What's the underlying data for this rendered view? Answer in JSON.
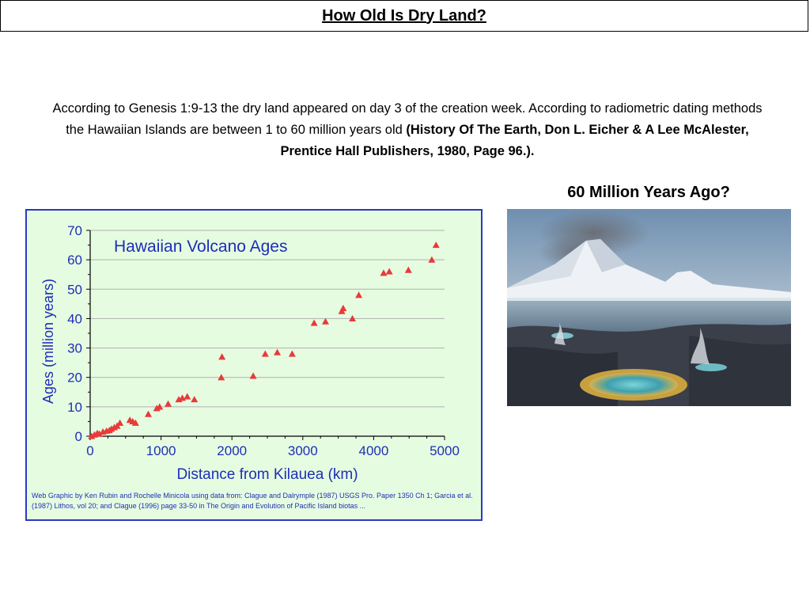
{
  "header": {
    "title": "How Old Is Dry Land?"
  },
  "intro": {
    "text": "According to Genesis 1:9-13 the dry land appeared on day 3 of the creation week. According to radiometric dating methods the Hawaiian Islands are between 1 to 60 million years old ",
    "citation": "(History Of The Earth, Don L. Eicher & A Lee McAlester, Prentice Hall Publishers, 1980, Page 96.)."
  },
  "caption": "60 Million Years Ago?",
  "credit": "Web Graphic by Ken Rubin and Rochelle Minicola using data from: Clague and Dalrymple (1987) USGS Pro. Paper 1350 Ch 1; Garcia et al. (1987) Lithos, vol 20; and Clague (1996) page 33-50 in The Origin and Evolution of Pacific Island biotas ...",
  "chart_data": {
    "type": "scatter",
    "title": "Hawaiian  Volcano Ages",
    "xlabel": "Distance from Kilauea (km)",
    "ylabel": "Ages (million years)",
    "xlim": [
      0,
      5000
    ],
    "ylim": [
      0,
      70
    ],
    "xticks": [
      "0",
      "1000",
      "2000",
      "3000",
      "4000",
      "5000"
    ],
    "yticks": [
      "0",
      "10",
      "20",
      "30",
      "40",
      "50",
      "60",
      "70"
    ],
    "grid": "horizontal",
    "marker": "triangle",
    "colors": {
      "marker": "#e83a3a",
      "text": "#1d2fb5",
      "axis": "#000000",
      "background": "#e6fce1",
      "border": "#2a39c4",
      "grid": "#b0b0b0"
    },
    "points": [
      {
        "x": 20,
        "y": 0
      },
      {
        "x": 60,
        "y": 0.5
      },
      {
        "x": 100,
        "y": 1
      },
      {
        "x": 130,
        "y": 0.8
      },
      {
        "x": 180,
        "y": 1.5
      },
      {
        "x": 230,
        "y": 1.8
      },
      {
        "x": 270,
        "y": 2
      },
      {
        "x": 300,
        "y": 2.5
      },
      {
        "x": 340,
        "y": 3
      },
      {
        "x": 380,
        "y": 3.5
      },
      {
        "x": 420,
        "y": 4.5
      },
      {
        "x": 560,
        "y": 5.5
      },
      {
        "x": 600,
        "y": 5
      },
      {
        "x": 640,
        "y": 4.5
      },
      {
        "x": 820,
        "y": 7.5
      },
      {
        "x": 940,
        "y": 9.5
      },
      {
        "x": 980,
        "y": 10
      },
      {
        "x": 1100,
        "y": 11
      },
      {
        "x": 1250,
        "y": 12.5
      },
      {
        "x": 1300,
        "y": 13
      },
      {
        "x": 1370,
        "y": 13.5
      },
      {
        "x": 1470,
        "y": 12.5
      },
      {
        "x": 1850,
        "y": 20
      },
      {
        "x": 1860,
        "y": 27
      },
      {
        "x": 2300,
        "y": 20.5
      },
      {
        "x": 2470,
        "y": 28
      },
      {
        "x": 2640,
        "y": 28.5
      },
      {
        "x": 2850,
        "y": 28
      },
      {
        "x": 3160,
        "y": 38.5
      },
      {
        "x": 3320,
        "y": 39
      },
      {
        "x": 3550,
        "y": 42.5
      },
      {
        "x": 3570,
        "y": 43.5
      },
      {
        "x": 3700,
        "y": 40
      },
      {
        "x": 3790,
        "y": 48
      },
      {
        "x": 4140,
        "y": 55.5
      },
      {
        "x": 4220,
        "y": 56
      },
      {
        "x": 4490,
        "y": 56.5
      },
      {
        "x": 4820,
        "y": 60
      },
      {
        "x": 4880,
        "y": 65
      }
    ]
  },
  "image": {
    "name": "volcanic-landscape-painting"
  }
}
